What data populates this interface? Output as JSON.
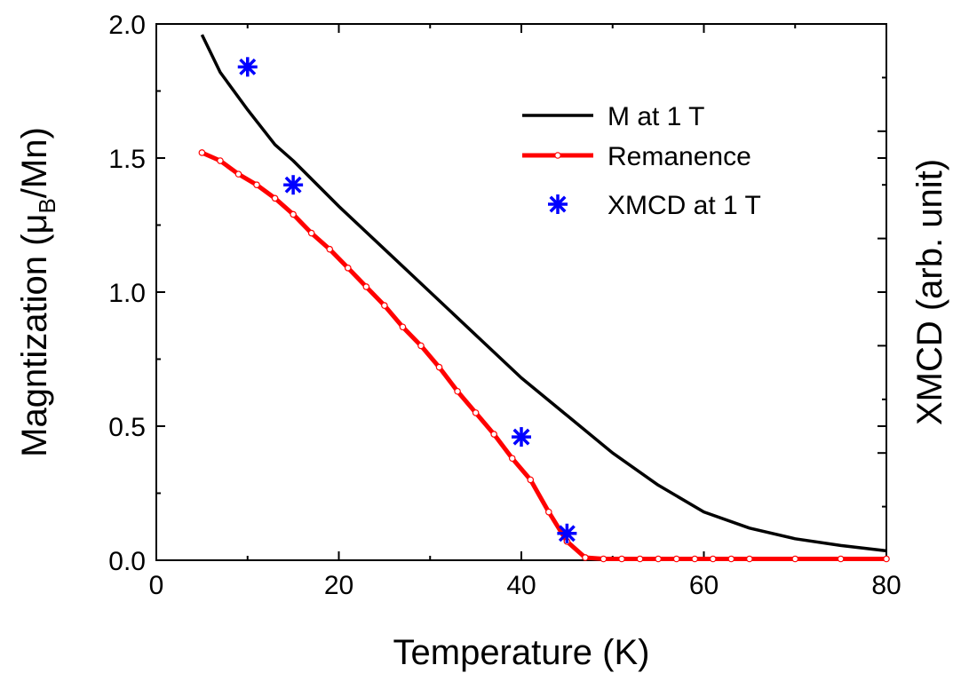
{
  "chart_data": {
    "type": "line",
    "title": "",
    "xlabel": "Temperature (K)",
    "ylabel": {
      "pre": "Magntization (",
      "mu": "μ",
      "sub": "B",
      "post": "/Mn)"
    },
    "y2label": "XMCD (arb. unit)",
    "xlim": [
      0,
      80
    ],
    "ylim": [
      0,
      2.0
    ],
    "xticks": [
      "0",
      "20",
      "40",
      "60",
      "80"
    ],
    "yticks": [
      "0.0",
      "0.5",
      "1.0",
      "1.5",
      "2.0"
    ],
    "grid": false,
    "legend_position": "top-right",
    "series": [
      {
        "name": "M at 1 T",
        "kind": "line",
        "color": "#000000",
        "x": [
          5,
          7,
          10,
          13,
          15,
          20,
          25,
          30,
          35,
          40,
          45,
          50,
          55,
          60,
          65,
          70,
          75,
          80
        ],
        "y": [
          1.96,
          1.82,
          1.68,
          1.55,
          1.49,
          1.32,
          1.16,
          1.0,
          0.84,
          0.68,
          0.54,
          0.4,
          0.28,
          0.18,
          0.12,
          0.08,
          0.055,
          0.035
        ]
      },
      {
        "name": "Remanence",
        "kind": "line-circle",
        "color": "#ff0000",
        "x": [
          5,
          7,
          9,
          11,
          13,
          15,
          17,
          19,
          21,
          23,
          25,
          27,
          29,
          31,
          33,
          35,
          37,
          39,
          41,
          43,
          45,
          47,
          49,
          51,
          53,
          55,
          57,
          59,
          61,
          63,
          65,
          70,
          75,
          80
        ],
        "y": [
          1.52,
          1.49,
          1.44,
          1.4,
          1.35,
          1.29,
          1.22,
          1.16,
          1.09,
          1.02,
          0.95,
          0.87,
          0.8,
          0.72,
          0.63,
          0.55,
          0.47,
          0.38,
          0.3,
          0.18,
          0.07,
          0.01,
          0.005,
          0.005,
          0.005,
          0.005,
          0.005,
          0.005,
          0.005,
          0.005,
          0.005,
          0.005,
          0.005,
          0.005
        ]
      },
      {
        "name": "XMCD at 1 T",
        "kind": "scatter",
        "color": "#0000ff",
        "x": [
          10,
          15,
          40,
          45
        ],
        "y": [
          1.84,
          1.4,
          0.46,
          0.1
        ]
      }
    ]
  }
}
